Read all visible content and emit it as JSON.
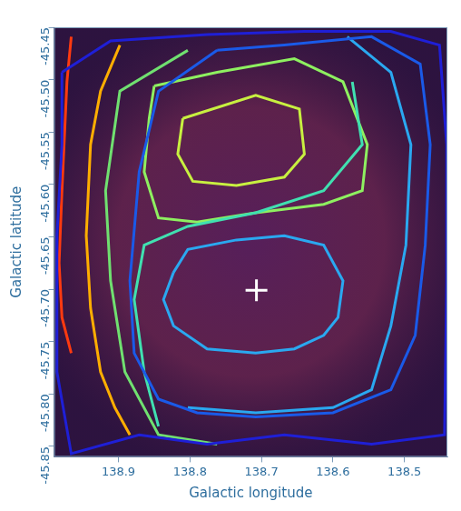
{
  "chart_data": {
    "type": "line",
    "xlabel": "Galactic longitude",
    "ylabel": "Galactic latitude",
    "xlim": [
      138.99,
      138.44
    ],
    "xticks": [
      138.9,
      138.8,
      138.7,
      138.6,
      138.5
    ],
    "ylim": [
      -45.86,
      -45.45
    ],
    "yticks": [
      {
        "value": -45.85,
        "label": "-45.85"
      },
      {
        "value": -45.8,
        "label": "-45.80"
      },
      {
        "value": -45.75,
        "label": "-45.75"
      },
      {
        "value": -45.7,
        "label": "-45.70"
      },
      {
        "value": -45.65,
        "label": "-45.65"
      },
      {
        "value": -45.6,
        "label": "-45.60"
      },
      {
        "value": -45.55,
        "label": "-45.55"
      },
      {
        "value": -45.5,
        "label": "-45.50"
      },
      {
        "value": -45.45,
        "label": "-45.45"
      }
    ],
    "grid": false,
    "series": [
      {
        "color": "#1f1fd6",
        "x": [
          138.979,
          138.911,
          138.776,
          138.64,
          138.519,
          138.451,
          138.441,
          138.441,
          138.444,
          138.546,
          138.668,
          138.776,
          138.871,
          138.966,
          138.986,
          138.986,
          138.979,
          138.979
        ],
        "y": [
          -45.493,
          -45.463,
          -45.457,
          -45.454,
          -45.454,
          -45.467,
          -45.562,
          -45.692,
          -45.839,
          -45.848,
          -45.839,
          -45.848,
          -45.839,
          -45.857,
          -45.779,
          -45.649,
          -45.562,
          -45.493
        ]
      },
      {
        "color": "#1a5ae8",
        "x": [
          138.762,
          138.668,
          138.546,
          138.478,
          138.464,
          138.471,
          138.485,
          138.519,
          138.6,
          138.708,
          138.79,
          138.844,
          138.878,
          138.884,
          138.871,
          138.844,
          138.762
        ],
        "y": [
          -45.472,
          -45.467,
          -45.459,
          -45.485,
          -45.562,
          -45.658,
          -45.744,
          -45.796,
          -45.818,
          -45.822,
          -45.818,
          -45.805,
          -45.761,
          -45.692,
          -45.588,
          -45.511,
          -45.472
        ]
      },
      {
        "color": "#2aa8f0",
        "x": [
          138.823,
          138.803,
          138.735,
          138.668,
          138.613,
          138.586,
          138.593,
          138.613,
          138.654,
          138.708,
          138.776,
          138.823,
          138.837,
          138.823
        ],
        "y": [
          -45.684,
          -45.662,
          -45.653,
          -45.649,
          -45.658,
          -45.692,
          -45.727,
          -45.744,
          -45.757,
          -45.761,
          -45.757,
          -45.735,
          -45.71,
          -45.684
        ]
      },
      {
        "color": "#2aa8f0",
        "x": [
          138.58,
          138.519,
          138.491,
          138.498,
          138.519,
          138.546,
          138.6,
          138.708,
          138.803
        ],
        "y": [
          -45.459,
          -45.493,
          -45.562,
          -45.658,
          -45.735,
          -45.796,
          -45.813,
          -45.818,
          -45.813
        ]
      },
      {
        "color": "#40e0b0",
        "x": [
          138.844,
          138.864,
          138.878,
          138.864,
          138.803,
          138.708,
          138.613,
          138.559,
          138.573
        ],
        "y": [
          -45.831,
          -45.779,
          -45.71,
          -45.658,
          -45.64,
          -45.627,
          -45.606,
          -45.562,
          -45.502
        ]
      },
      {
        "color": "#8ef060",
        "x": [
          138.85,
          138.762,
          138.654,
          138.586,
          138.552,
          138.559,
          138.613,
          138.708,
          138.79,
          138.844,
          138.864,
          138.857,
          138.85
        ],
        "y": [
          -45.506,
          -45.493,
          -45.48,
          -45.502,
          -45.562,
          -45.606,
          -45.619,
          -45.627,
          -45.636,
          -45.632,
          -45.588,
          -45.537,
          -45.506
        ]
      },
      {
        "color": "#70e070",
        "x": [
          138.803,
          138.898,
          138.918,
          138.911,
          138.891,
          138.844,
          138.762
        ],
        "y": [
          -45.472,
          -45.511,
          -45.606,
          -45.692,
          -45.779,
          -45.839,
          -45.848
        ]
      },
      {
        "color": "#c8f040",
        "x": [
          138.81,
          138.708,
          138.647,
          138.64,
          138.668,
          138.735,
          138.796,
          138.817,
          138.81
        ],
        "y": [
          -45.537,
          -45.515,
          -45.528,
          -45.571,
          -45.593,
          -45.601,
          -45.597,
          -45.571,
          -45.537
        ]
      },
      {
        "color": "#ffae00",
        "x": [
          138.898,
          138.925,
          138.939,
          138.945,
          138.939,
          138.925,
          138.905,
          138.884
        ],
        "y": [
          -45.467,
          -45.511,
          -45.562,
          -45.649,
          -45.718,
          -45.779,
          -45.813,
          -45.839
        ]
      },
      {
        "color": "#ff3a10",
        "x": [
          138.966,
          138.972,
          138.979,
          138.983,
          138.979,
          138.966
        ],
        "y": [
          -45.459,
          -45.502,
          -45.606,
          -45.675,
          -45.727,
          -45.761
        ]
      },
      {
        "type": "scatter",
        "marker": "cross",
        "color": "#ffffff",
        "x": [
          138.707
        ],
        "y": [
          -45.701
        ]
      }
    ]
  }
}
